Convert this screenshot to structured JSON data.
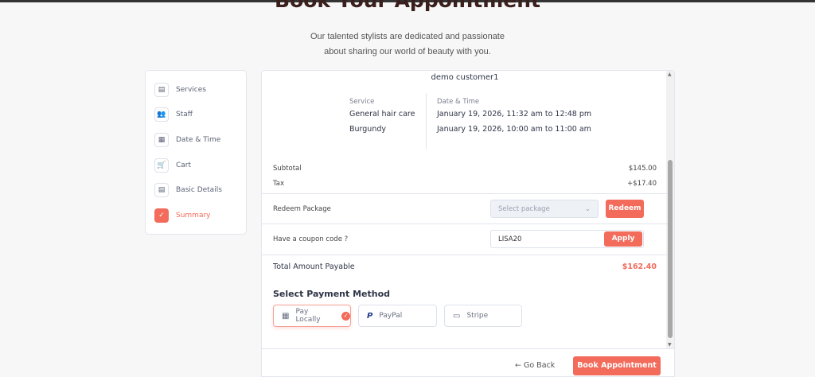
{
  "page": {
    "title": "Book Your Appointment",
    "subtitle_line1": "Our talented stylists are dedicated and passionate",
    "subtitle_line2": "about sharing our world of beauty with you."
  },
  "sidebar": {
    "items": [
      {
        "label": "Services",
        "icon": "services-icon"
      },
      {
        "label": "Staff",
        "icon": "staff-icon"
      },
      {
        "label": "Date & Time",
        "icon": "calendar-icon"
      },
      {
        "label": "Cart",
        "icon": "cart-icon"
      },
      {
        "label": "Basic Details",
        "icon": "details-icon"
      },
      {
        "label": "Summary",
        "icon": "summary-check-icon",
        "active": true
      }
    ]
  },
  "summary": {
    "customer": "demo customer1",
    "service_label": "Service",
    "services": [
      "General hair care",
      "Burgundy"
    ],
    "datetime_label": "Date & Time",
    "datetimes": [
      "January 19, 2026, 11:32 am to 12:48 pm",
      "January 19, 2026, 10:00 am to 11:00 am"
    ]
  },
  "totals": {
    "subtotal_label": "Subtotal",
    "subtotal": "$145.00",
    "tax_label": "Tax",
    "tax": "+$17.40",
    "redeem_label": "Redeem Package",
    "package_placeholder": "Select package",
    "redeem_button": "Redeem",
    "coupon_label": "Have a coupon code ?",
    "coupon_value": "LISA20",
    "apply_button": "Apply",
    "total_label": "Total Amount Payable",
    "total": "$162.40"
  },
  "payment": {
    "heading": "Select Payment Method",
    "methods": [
      {
        "label": "Pay Locally",
        "selected": true
      },
      {
        "label": "PayPal"
      },
      {
        "label": "Stripe"
      }
    ]
  },
  "footer": {
    "back": "← Go Back",
    "book": "Book Appointment"
  },
  "colors": {
    "accent": "#f26b5b"
  }
}
